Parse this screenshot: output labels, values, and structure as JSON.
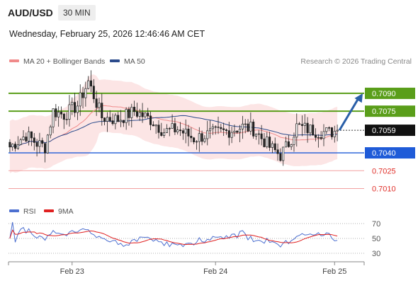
{
  "header": {
    "symbol": "AUD/USD",
    "interval": "30 MIN",
    "datetime": "Wednesday, February 25, 2026 12:46:46 AM CET"
  },
  "legend": {
    "ma20": {
      "label": "MA 20 + Bollinger Bands",
      "color": "#f08a8a"
    },
    "ma50": {
      "label": "MA 50",
      "color": "#2b4b8c"
    },
    "credit": "Research © 2026 Trading Central"
  },
  "chart_data": [
    {
      "type": "candlestick",
      "title": "AUD/USD",
      "ylim": [
        0.7002,
        0.7106
      ],
      "x_ticks": [
        "Feb 23",
        "Feb 24",
        "Feb 25"
      ],
      "last_price": {
        "value": 0.7059,
        "label": "0.7059"
      },
      "levels": [
        {
          "label": "0.7090",
          "value": 0.709,
          "kind": "resistance",
          "color": "#5a9e1a"
        },
        {
          "label": "0.7075",
          "value": 0.7075,
          "kind": "resistance",
          "color": "#5a9e1a"
        },
        {
          "label": "0.7040",
          "value": 0.704,
          "kind": "pivot",
          "color": "#1f5bd8"
        },
        {
          "label": "0.7025",
          "value": 0.7025,
          "kind": "support",
          "color": "#e0302a"
        },
        {
          "label": "0.7010",
          "value": 0.701,
          "kind": "support",
          "color": "#e0302a"
        }
      ],
      "anchors": [
        [
          0,
          0.7045
        ],
        [
          6,
          0.7055
        ],
        [
          10,
          0.7048
        ],
        [
          13,
          0.7045
        ],
        [
          16,
          0.7075
        ],
        [
          20,
          0.7072
        ],
        [
          25,
          0.708
        ],
        [
          29,
          0.71
        ],
        [
          34,
          0.707
        ],
        [
          40,
          0.7068
        ],
        [
          46,
          0.7075
        ],
        [
          52,
          0.7068
        ],
        [
          57,
          0.7058
        ],
        [
          62,
          0.706
        ],
        [
          68,
          0.7052
        ],
        [
          74,
          0.7056
        ],
        [
          80,
          0.7058
        ],
        [
          86,
          0.7062
        ],
        [
          90,
          0.706
        ],
        [
          96,
          0.7045
        ],
        [
          100,
          0.7038
        ],
        [
          103,
          0.7048
        ],
        [
          106,
          0.7062
        ],
        [
          110,
          0.706
        ],
        [
          114,
          0.7058
        ],
        [
          118,
          0.7057
        ],
        [
          121,
          0.7059
        ]
      ],
      "arrow": {
        "direction": "up",
        "to": 0.709,
        "color": "#2a5fa8"
      }
    },
    {
      "type": "line",
      "title": "RSI",
      "ylim": [
        20,
        80
      ],
      "y_ticks": [
        70,
        50,
        30
      ],
      "series": [
        {
          "name": "RSI",
          "color": "#4c6fd0"
        },
        {
          "name": "9MA",
          "color": "#e02020"
        }
      ]
    }
  ]
}
